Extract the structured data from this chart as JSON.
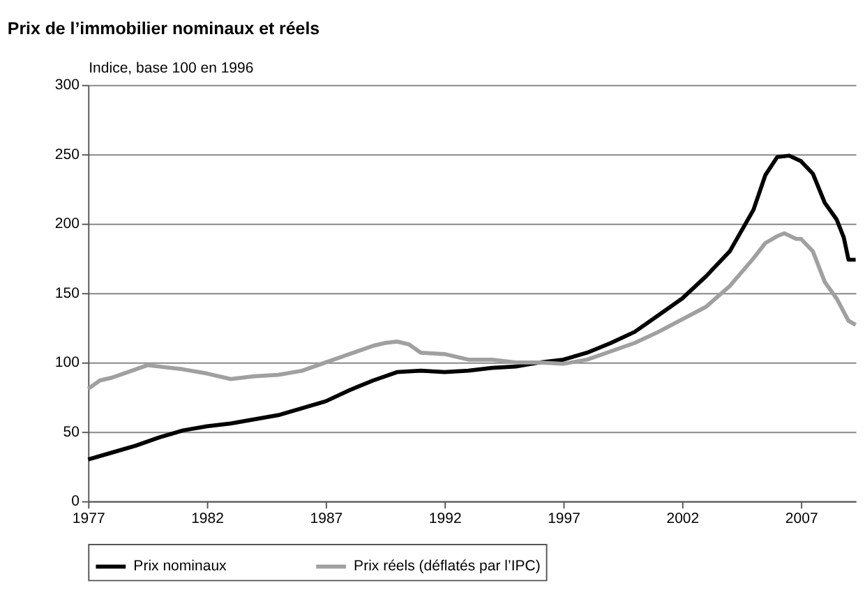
{
  "chart_data": {
    "type": "line",
    "title": "Prix de l’immobilier nominaux et réels",
    "ylabel": "Indice, base 100 en 1996",
    "xlim": [
      1977,
      2009.3
    ],
    "xticks": [
      1977,
      1982,
      1987,
      1992,
      1997,
      2002,
      2007
    ],
    "ylim": [
      0,
      300
    ],
    "yticks": [
      0,
      50,
      100,
      150,
      200,
      250,
      300
    ],
    "grid": "y",
    "legend": "bottom",
    "line_style": "solid",
    "marker": "none",
    "series": [
      {
        "name": "Prix nominaux",
        "color": "#000000",
        "x": [
          1977,
          1978,
          1979,
          1980,
          1981,
          1982,
          1983,
          1984,
          1985,
          1986,
          1987,
          1988,
          1989,
          1990,
          1991,
          1992,
          1993,
          1994,
          1995,
          1996,
          1997,
          1998,
          1999,
          2000,
          2001,
          2002,
          2003,
          2004,
          2005,
          2005.5,
          2006,
          2006.5,
          2007,
          2007.5,
          2008,
          2008.5,
          2008.8,
          2009,
          2009.3
        ],
        "values": [
          30,
          35,
          40,
          46,
          51,
          54,
          56,
          59,
          62,
          67,
          72,
          80,
          87,
          93,
          94,
          93,
          94,
          96,
          97,
          100,
          102,
          107,
          114,
          122,
          134,
          146,
          162,
          180,
          210,
          235,
          248,
          249,
          245,
          236,
          215,
          203,
          190,
          174,
          174
        ]
      },
      {
        "name": "Prix réels (déflatés par l’IPC)",
        "color": "#a0a0a0",
        "x": [
          1977,
          1977.5,
          1978,
          1978.5,
          1979.5,
          1980,
          1981,
          1982,
          1983,
          1984,
          1985,
          1986,
          1987,
          1988,
          1989,
          1989.5,
          1990,
          1990.5,
          1991,
          1992,
          1993,
          1994,
          1995,
          1996,
          1997,
          1998,
          1999,
          2000,
          2001,
          2002,
          2003,
          2004,
          2005,
          2005.5,
          2006,
          2006.3,
          2006.8,
          2007,
          2007.5,
          2008,
          2008.5,
          2009,
          2009.3
        ],
        "values": [
          81,
          87,
          89,
          92,
          98,
          97,
          95,
          92,
          88,
          90,
          91,
          94,
          100,
          106,
          112,
          114,
          115,
          113,
          107,
          106,
          102,
          102,
          100,
          100,
          99,
          102,
          108,
          114,
          122,
          131,
          140,
          155,
          175,
          186,
          191,
          193,
          189,
          189,
          180,
          158,
          146,
          130,
          127
        ]
      }
    ]
  }
}
